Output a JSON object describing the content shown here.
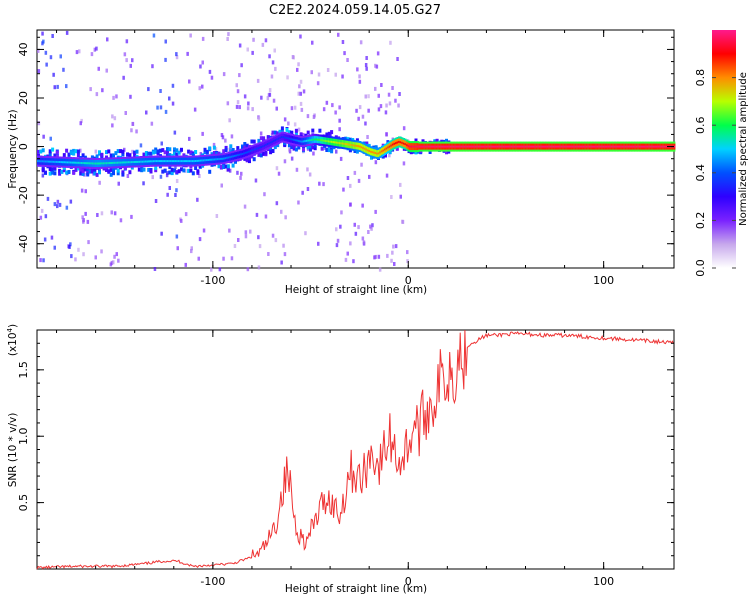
{
  "figure_title": "C2E2.2024.059.14.05.G27",
  "chart_data": [
    {
      "type": "heatmap",
      "title": "C2E2.2024.059.14.05.G27",
      "xlabel": "Height of straight line (km)",
      "ylabel": "Frequency (Hz)",
      "xlim": [
        -190,
        136
      ],
      "ylim": [
        -50,
        48
      ],
      "xticks": [
        -100,
        0,
        100
      ],
      "yticks": [
        -40,
        -20,
        0,
        20,
        40
      ],
      "colorbar": {
        "label": "Normalized spectral amplitude",
        "range": [
          0,
          1
        ],
        "ticks": [
          0.0,
          0.2,
          0.4,
          0.6,
          0.8
        ],
        "colormap": [
          "#ffffff",
          "#c7a8ec",
          "#7a22ff",
          "#2e00ff",
          "#0050ff",
          "#00d2ff",
          "#00ff4a",
          "#b8ff00",
          "#ff8c00",
          "#ff0000",
          "#ff1a8c"
        ]
      },
      "ridge": {
        "x": [
          -190,
          -160,
          -130,
          -110,
          -95,
          -85,
          -75,
          -65,
          -55,
          -48,
          -40,
          -32,
          -25,
          -20,
          -16,
          -12,
          -8,
          -5,
          -2,
          0,
          5,
          15,
          136
        ],
        "frequency_hz": [
          -6,
          -7,
          -6,
          -6,
          -5,
          -3,
          0,
          4,
          2,
          3,
          2,
          1,
          0,
          -2,
          -3,
          -1,
          1,
          2,
          1,
          0,
          0,
          0,
          0
        ],
        "amplitude": [
          0.45,
          0.55,
          0.5,
          0.5,
          0.45,
          0.4,
          0.35,
          0.35,
          0.45,
          0.6,
          0.7,
          0.75,
          0.8,
          0.8,
          0.8,
          0.85,
          0.9,
          0.9,
          0.9,
          0.95,
          0.97,
          0.98,
          0.98
        ]
      }
    },
    {
      "type": "line",
      "xlabel": "Height of straight line (km)",
      "ylabel": "SNR (10 * v/v)",
      "multiplier": "(x10",
      "multiplier_exp": "4",
      "xlim": [
        -190,
        136
      ],
      "ylim": [
        0,
        1.8
      ],
      "xticks": [
        -100,
        0,
        100
      ],
      "yticks": [
        0.5,
        1.0,
        1.5
      ],
      "ytick_labels": [
        "0.5",
        "1.0",
        "1.5"
      ],
      "series": [
        {
          "color": "#ee3333",
          "x": [
            -190,
            -170,
            -150,
            -135,
            -125,
            -118,
            -110,
            -100,
            -90,
            -82,
            -76,
            -72,
            -68,
            -65,
            -62,
            -60,
            -58,
            -55,
            -52,
            -48,
            -45,
            -42,
            -38,
            -35,
            -32,
            -30,
            -27,
            -24,
            -21,
            -18,
            -15,
            -12,
            -9,
            -6,
            -3,
            0,
            3,
            6,
            9,
            12,
            15,
            18,
            21,
            24,
            27,
            30,
            35,
            40,
            45,
            50,
            60,
            70,
            80,
            90,
            100,
            110,
            120,
            130,
            136
          ],
          "values": [
            0.01,
            0.02,
            0.02,
            0.04,
            0.06,
            0.06,
            0.02,
            0.03,
            0.04,
            0.08,
            0.12,
            0.2,
            0.32,
            0.55,
            0.72,
            0.6,
            0.35,
            0.25,
            0.2,
            0.35,
            0.45,
            0.55,
            0.48,
            0.4,
            0.6,
            0.75,
            0.72,
            0.65,
            0.8,
            0.9,
            0.75,
            0.9,
            1.0,
            0.85,
            0.82,
            0.95,
            1.1,
            1.05,
            1.2,
            1.25,
            1.35,
            1.45,
            1.5,
            1.55,
            1.62,
            1.68,
            1.72,
            1.76,
            1.76,
            1.77,
            1.77,
            1.76,
            1.76,
            1.75,
            1.74,
            1.73,
            1.72,
            1.71,
            1.7
          ]
        }
      ]
    }
  ]
}
